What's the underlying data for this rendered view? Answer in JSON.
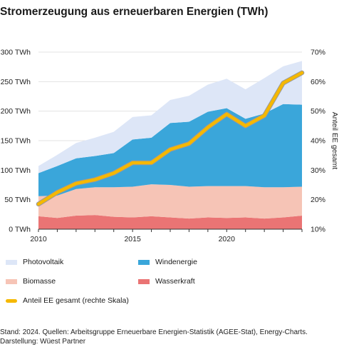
{
  "title": "Stromerzeugung aus erneuerbaren Energien (TWh)",
  "source_line1": "Stand: 2024. Quellen: Arbeitsgruppe Erneuerbare Energien-Statistik (AGEE-Stat), Energy-Charts.",
  "source_line2": "Darstellung: Wüest Partner",
  "colors": {
    "photovoltaik": "#dde6f7",
    "windenergie": "#3aa6da",
    "biomasse": "#f6c4b6",
    "wasserkraft": "#ea7474",
    "anteil": "#f5b800",
    "anteil_outline": "#999999",
    "grid": "#e3e3e3"
  },
  "chart_data": {
    "type": "area",
    "stacked": true,
    "x": [
      2010,
      2011,
      2012,
      2013,
      2014,
      2015,
      2016,
      2017,
      2018,
      2019,
      2020,
      2021,
      2022,
      2023,
      2024
    ],
    "xticks": [
      "2010",
      "2015",
      "2020"
    ],
    "ylim": [
      0,
      300
    ],
    "yticks": [
      "0 TWh",
      "50 TWh",
      "100 TWh",
      "150 TWh",
      "200 TWh",
      "250 TWh",
      "300 TWh"
    ],
    "y2lim": [
      10,
      70
    ],
    "y2ticks": [
      "10%",
      "20%",
      "30%",
      "40%",
      "50%",
      "60%",
      "70%"
    ],
    "y2label": "Anteil EE gesamt",
    "series": [
      {
        "name": "Wasserkraft",
        "key": "wasserkraft",
        "values": [
          22,
          19,
          23,
          24,
          21,
          20,
          22,
          20,
          18,
          20,
          19,
          20,
          18,
          20,
          23
        ]
      },
      {
        "name": "Biomasse",
        "key": "biomasse",
        "values": [
          34,
          38,
          45,
          47,
          50,
          52,
          54,
          55,
          54,
          53,
          54,
          53,
          53,
          51,
          49
        ]
      },
      {
        "name": "Windenergie",
        "key": "windenergie",
        "values": [
          39,
          50,
          52,
          53,
          58,
          80,
          79,
          105,
          110,
          126,
          132,
          114,
          125,
          141,
          139
        ]
      },
      {
        "name": "Photovoltaik",
        "key": "photovoltaik",
        "values": [
          12,
          19,
          26,
          31,
          36,
          38,
          38,
          39,
          44,
          46,
          50,
          50,
          60,
          64,
          74
        ]
      }
    ],
    "line_series": {
      "name": "Anteil EE gesamt (rechte Skala)",
      "key": "anteil",
      "axis": "right",
      "values": [
        18.5,
        22.5,
        25.5,
        26.8,
        29.0,
        32.5,
        32.5,
        37.0,
        39.0,
        44.5,
        49.0,
        45.0,
        48.5,
        59.5,
        63.0
      ]
    },
    "legend": [
      {
        "key": "photovoltaik",
        "label": "Photovoltaik",
        "kind": "area"
      },
      {
        "key": "windenergie",
        "label": "Windenergie",
        "kind": "area"
      },
      {
        "key": "biomasse",
        "label": "Biomasse",
        "kind": "area"
      },
      {
        "key": "wasserkraft",
        "label": "Wasserkraft",
        "kind": "area"
      },
      {
        "key": "anteil",
        "label": "Anteil EE gesamt (rechte Skala)",
        "kind": "line"
      }
    ]
  }
}
